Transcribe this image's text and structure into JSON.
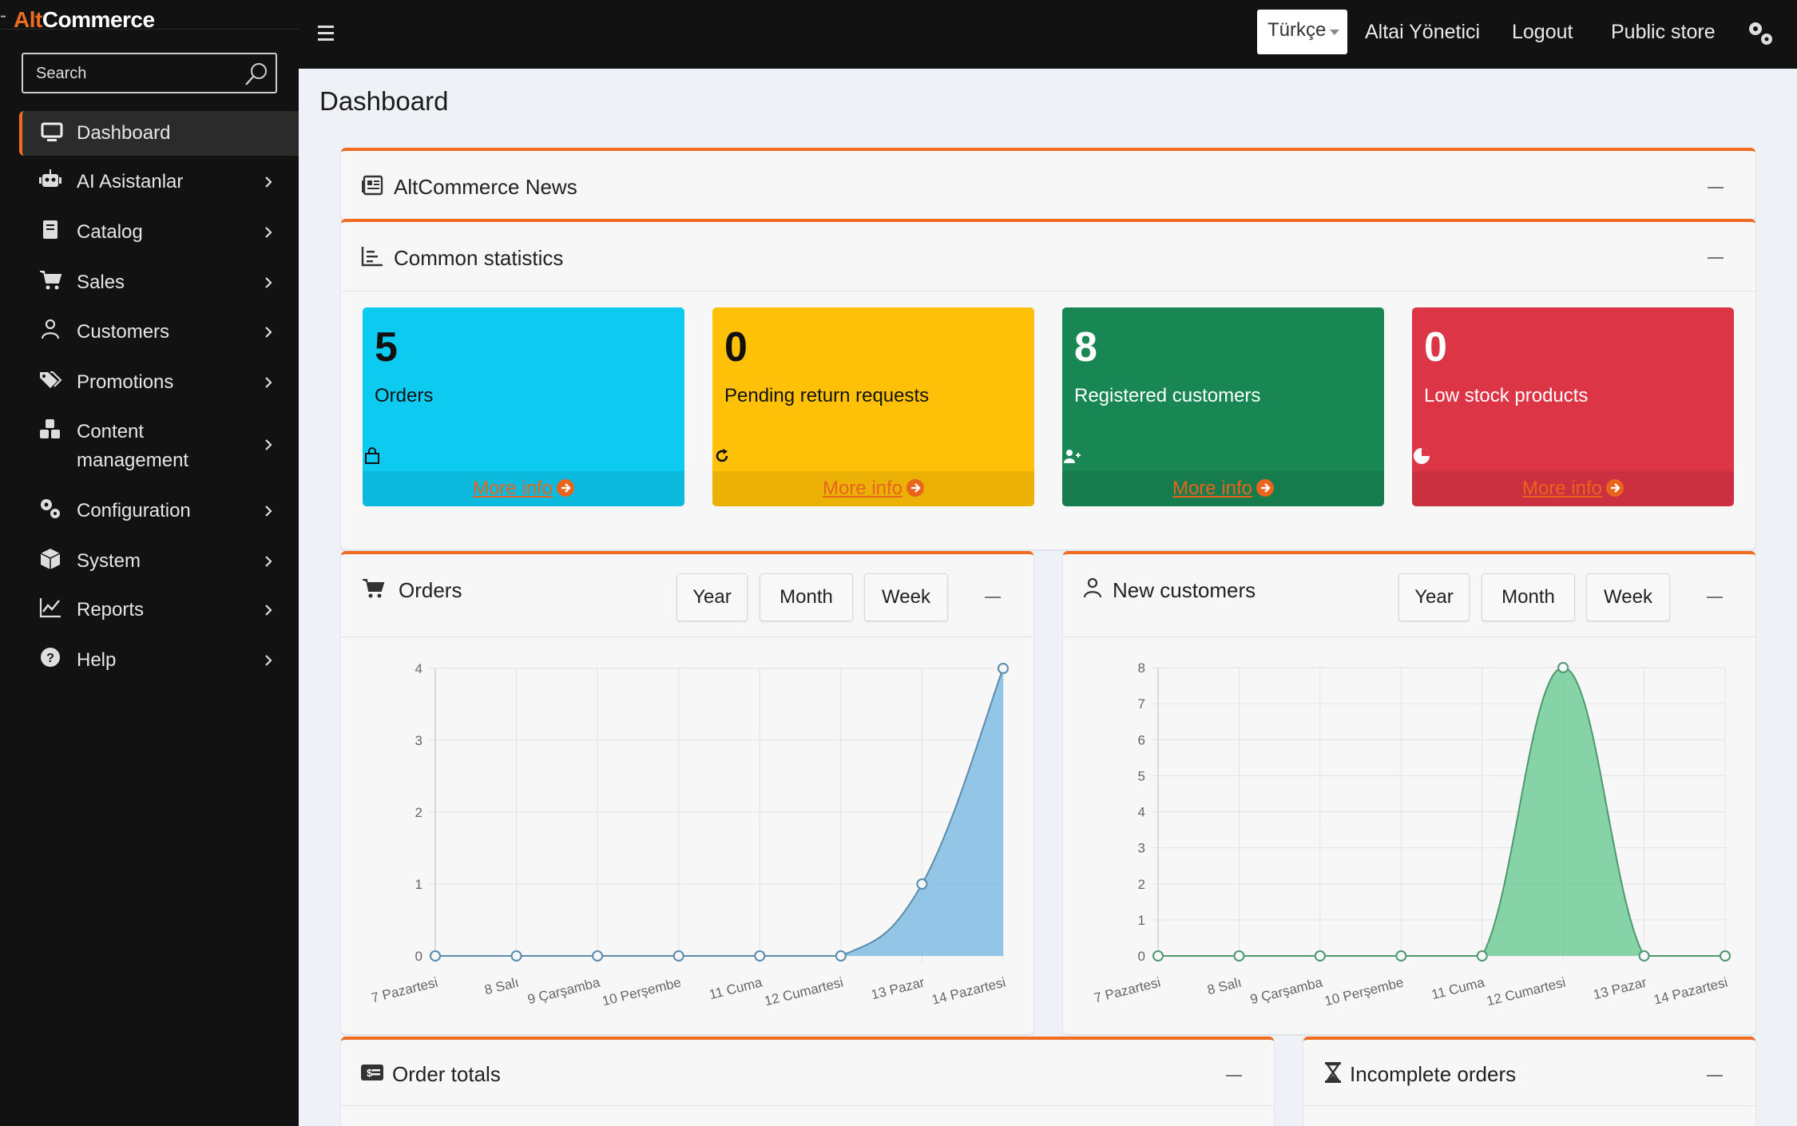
{
  "brand": {
    "part1": "Alt",
    "part2": "Commerce"
  },
  "search": {
    "placeholder": "Search"
  },
  "sidebar": {
    "items": [
      {
        "label": "Dashboard"
      },
      {
        "label": "AI Asistanlar"
      },
      {
        "label": "Catalog"
      },
      {
        "label": "Sales"
      },
      {
        "label": "Customers"
      },
      {
        "label": "Promotions"
      },
      {
        "label": "Content",
        "label2": "management"
      },
      {
        "label": "Configuration"
      },
      {
        "label": "System"
      },
      {
        "label": "Reports"
      },
      {
        "label": "Help"
      }
    ]
  },
  "topbar": {
    "language": "Türkçe",
    "user": "Altai Yönetici",
    "logout": "Logout",
    "public_store": "Public store"
  },
  "page": {
    "title": "Dashboard"
  },
  "news": {
    "title": "AltCommerce News"
  },
  "common_stats": {
    "title": "Common statistics",
    "cards": [
      {
        "value": "5",
        "label": "Orders",
        "more": "More info",
        "color": "#0dcaf0"
      },
      {
        "value": "0",
        "label": "Pending return requests",
        "more": "More info",
        "color": "#ffc107"
      },
      {
        "value": "8",
        "label": "Registered customers",
        "more": "More info",
        "color": "#198754"
      },
      {
        "value": "0",
        "label": "Low stock products",
        "more": "More info",
        "color": "#dc3545"
      }
    ]
  },
  "orders_chart": {
    "title": "Orders",
    "buttons": [
      "Year",
      "Month",
      "Week"
    ]
  },
  "customers_chart": {
    "title": "New customers",
    "buttons": [
      "Year",
      "Month",
      "Week"
    ]
  },
  "order_totals": {
    "title": "Order totals"
  },
  "incomplete_orders": {
    "title": "Incomplete orders"
  },
  "chart_data": [
    {
      "type": "area",
      "categories": [
        "7 Pazartesi",
        "8 Salı",
        "9 Çarşamba",
        "10 Perşembe",
        "11 Cuma",
        "12 Cumartesi",
        "13 Pazar",
        "14 Pazartesi"
      ],
      "series": [
        {
          "values": [
            0,
            0,
            0,
            0,
            0,
            0,
            1,
            4
          ],
          "color": "#7cb9e3"
        }
      ],
      "ylim": [
        0,
        4
      ],
      "yticks": [
        0,
        1,
        2,
        3,
        4
      ],
      "grid": true
    },
    {
      "type": "area",
      "categories": [
        "7 Pazartesi",
        "8 Salı",
        "9 Çarşamba",
        "10 Perşembe",
        "11 Cuma",
        "12 Cumartesi",
        "13 Pazar",
        "14 Pazartesi"
      ],
      "series": [
        {
          "values": [
            0,
            0,
            0,
            0,
            0,
            8,
            0,
            0
          ],
          "color": "#6bcb94"
        }
      ],
      "ylim": [
        0,
        8
      ],
      "yticks": [
        0,
        1,
        2,
        3,
        4,
        5,
        6,
        7,
        8
      ],
      "grid": true
    }
  ]
}
